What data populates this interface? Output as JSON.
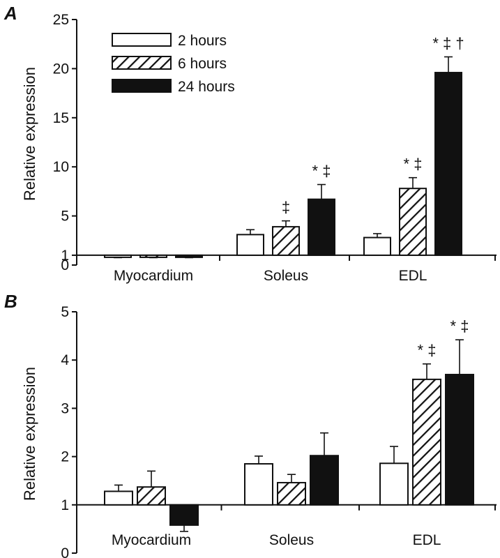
{
  "chart_data": [
    {
      "panel": "A",
      "type": "bar",
      "ylabel": "Relative expression",
      "ylim": [
        0,
        25
      ],
      "yticks": [
        "0",
        "1",
        "5",
        "10",
        "15",
        "20",
        "25"
      ],
      "baseline": 1,
      "categories": [
        "Myocardium",
        "Soleus",
        "EDL"
      ],
      "series": [
        {
          "name": "2 hours",
          "fill": "white",
          "values": [
            0.85,
            3.1,
            2.8
          ],
          "errors": [
            0.1,
            0.5,
            0.4
          ]
        },
        {
          "name": "6 hours",
          "fill": "hatch",
          "values": [
            0.85,
            3.9,
            7.8
          ],
          "errors": [
            0.1,
            0.6,
            1.1
          ]
        },
        {
          "name": "24 hours",
          "fill": "black",
          "values": [
            0.85,
            6.7,
            19.6
          ],
          "errors": [
            0.1,
            1.5,
            1.6
          ]
        }
      ],
      "annotations": [
        {
          "category": 1,
          "series": 1,
          "text": "‡"
        },
        {
          "category": 1,
          "series": 2,
          "text": "* ‡"
        },
        {
          "category": 2,
          "series": 1,
          "text": "* ‡"
        },
        {
          "category": 2,
          "series": 2,
          "text": "* ‡ †"
        }
      ],
      "legend": "top-left"
    },
    {
      "panel": "B",
      "type": "bar",
      "ylabel": "Relative expression",
      "ylim": [
        0,
        5
      ],
      "yticks": [
        "0",
        "1",
        "2",
        "3",
        "4",
        "5"
      ],
      "baseline": 1,
      "categories": [
        "Myocardium",
        "Soleus",
        "EDL"
      ],
      "series": [
        {
          "name": "2 hours",
          "fill": "white",
          "values": [
            1.28,
            1.85,
            1.86
          ],
          "errors": [
            0.13,
            0.16,
            0.35
          ]
        },
        {
          "name": "6 hours",
          "fill": "hatch",
          "values": [
            1.37,
            1.46,
            3.6
          ],
          "errors": [
            0.33,
            0.17,
            0.32
          ]
        },
        {
          "name": "24 hours",
          "fill": "black",
          "values": [
            0.58,
            2.02,
            3.7
          ],
          "errors": [
            0.13,
            0.47,
            0.72
          ]
        }
      ],
      "annotations": [
        {
          "category": 2,
          "series": 1,
          "text": "* ‡"
        },
        {
          "category": 2,
          "series": 2,
          "text": "* ‡"
        }
      ],
      "legend": "none"
    }
  ]
}
